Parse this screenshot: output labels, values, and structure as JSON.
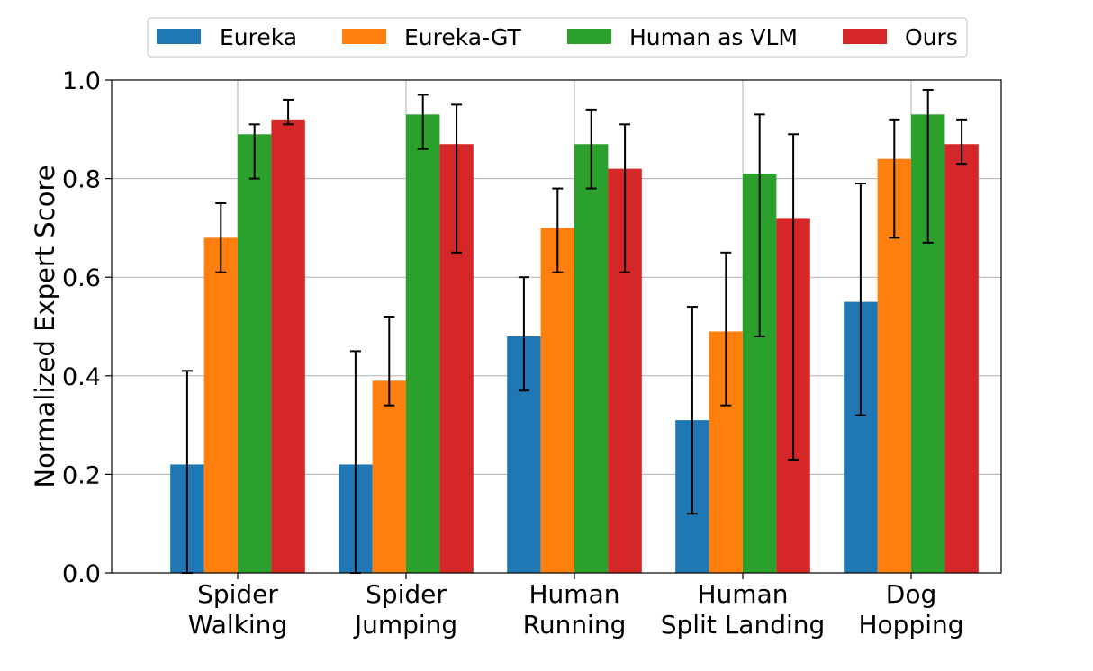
{
  "chart_data": {
    "type": "bar",
    "categories": [
      [
        "Spider",
        "Walking"
      ],
      [
        "Spider",
        "Jumping"
      ],
      [
        "Human",
        "Running"
      ],
      [
        "Human",
        "Split Landing"
      ],
      [
        "Dog",
        "Hopping"
      ]
    ],
    "series": [
      {
        "name": "Eureka",
        "color": "#1f77b4",
        "values": [
          0.22,
          0.22,
          0.48,
          0.31,
          0.55
        ],
        "err_low": [
          0.0,
          0.0,
          0.37,
          0.12,
          0.32
        ],
        "err_high": [
          0.41,
          0.45,
          0.6,
          0.54,
          0.79
        ]
      },
      {
        "name": "Eureka-GT",
        "color": "#ff7f0e",
        "values": [
          0.68,
          0.39,
          0.7,
          0.49,
          0.84
        ],
        "err_low": [
          0.61,
          0.34,
          0.61,
          0.34,
          0.68
        ],
        "err_high": [
          0.75,
          0.52,
          0.78,
          0.65,
          0.92
        ]
      },
      {
        "name": "Human as VLM",
        "color": "#2ca02c",
        "values": [
          0.89,
          0.93,
          0.87,
          0.81,
          0.93
        ],
        "err_low": [
          0.8,
          0.86,
          0.78,
          0.48,
          0.67
        ],
        "err_high": [
          0.91,
          0.97,
          0.94,
          0.93,
          0.98
        ]
      },
      {
        "name": "Ours",
        "color": "#d62728",
        "values": [
          0.92,
          0.87,
          0.82,
          0.72,
          0.87
        ],
        "err_low": [
          0.91,
          0.65,
          0.61,
          0.23,
          0.83
        ],
        "err_high": [
          0.96,
          0.95,
          0.91,
          0.89,
          0.92
        ]
      }
    ],
    "xlabel": "",
    "ylabel": "Normalized Expert Score",
    "ylim": [
      0,
      1.0
    ],
    "yticks": [
      "0.0",
      "0.2",
      "0.4",
      "0.6",
      "0.8",
      "1.0"
    ],
    "grid": true,
    "legend_position": "top-center"
  }
}
